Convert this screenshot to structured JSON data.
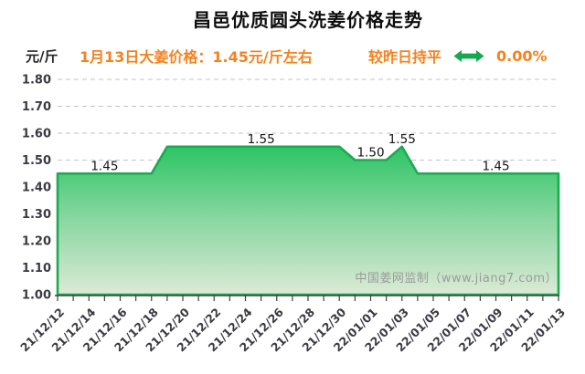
{
  "header": {
    "title": "昌邑优质圆头洗姜价格走势",
    "unit_label": "元/斤",
    "subtitle": "1月13日大姜价格：1.45元/斤左右",
    "trend_label": "较昨日持平",
    "trend_icon": "left-right-arrow",
    "trend_value": "0.00%"
  },
  "watermark": "中国姜网监制（www.jiang7.com）",
  "colors": {
    "accent_orange": "#f5821f",
    "arrow_green": "#14a94f",
    "area_stroke": "#1caa53",
    "area_gradient_top": "#2dc465",
    "area_gradient_mid": "#8ad8a2",
    "area_gradient_bottom": "#dcead6",
    "grid_line": "#c3c3c3",
    "axis_line": "#404040",
    "tick_text": "#3a3a44",
    "data_label_text": "#141414"
  },
  "chart_data": {
    "type": "area",
    "title": "昌邑优质圆头洗姜价格走势",
    "xlabel": "",
    "ylabel": "元/斤",
    "ylim": [
      1.0,
      1.8
    ],
    "y_ticks": [
      "1.80",
      "1.70",
      "1.60",
      "1.50",
      "1.40",
      "1.30",
      "1.20",
      "1.10",
      "1.00"
    ],
    "grid": "horizontal-dashed",
    "legend": "none",
    "x": [
      "21/12/12",
      "21/12/13",
      "21/12/14",
      "21/12/15",
      "21/12/16",
      "21/12/17",
      "21/12/18",
      "21/12/19",
      "21/12/20",
      "21/12/21",
      "21/12/22",
      "21/12/23",
      "21/12/24",
      "21/12/25",
      "21/12/26",
      "21/12/27",
      "21/12/28",
      "21/12/29",
      "21/12/30",
      "21/12/31",
      "22/01/01",
      "22/01/02",
      "22/01/03",
      "22/01/04",
      "22/01/05",
      "22/01/06",
      "22/01/07",
      "22/01/08",
      "22/01/09",
      "22/01/10",
      "22/01/11",
      "22/01/12",
      "22/01/13"
    ],
    "values": [
      1.45,
      1.45,
      1.45,
      1.45,
      1.45,
      1.45,
      1.45,
      1.55,
      1.55,
      1.55,
      1.55,
      1.55,
      1.55,
      1.55,
      1.55,
      1.55,
      1.55,
      1.55,
      1.55,
      1.5,
      1.5,
      1.5,
      1.55,
      1.45,
      1.45,
      1.45,
      1.45,
      1.45,
      1.45,
      1.45,
      1.45,
      1.45,
      1.45
    ],
    "x_tick_labels": [
      "21/12/12",
      "21/12/14",
      "21/12/16",
      "21/12/18",
      "21/12/20",
      "21/12/22",
      "21/12/24",
      "21/12/26",
      "21/12/28",
      "21/12/30",
      "22/01/01",
      "22/01/03",
      "22/01/05",
      "22/01/07",
      "22/01/09",
      "22/01/11",
      "22/01/13"
    ],
    "x_tick_every": 2,
    "annotations": [
      {
        "index": 3,
        "label": "1.45"
      },
      {
        "index": 13,
        "label": "1.55"
      },
      {
        "index": 20,
        "label": "1.50"
      },
      {
        "index": 22,
        "label": "1.55"
      },
      {
        "index": 28,
        "label": "1.45"
      }
    ]
  }
}
